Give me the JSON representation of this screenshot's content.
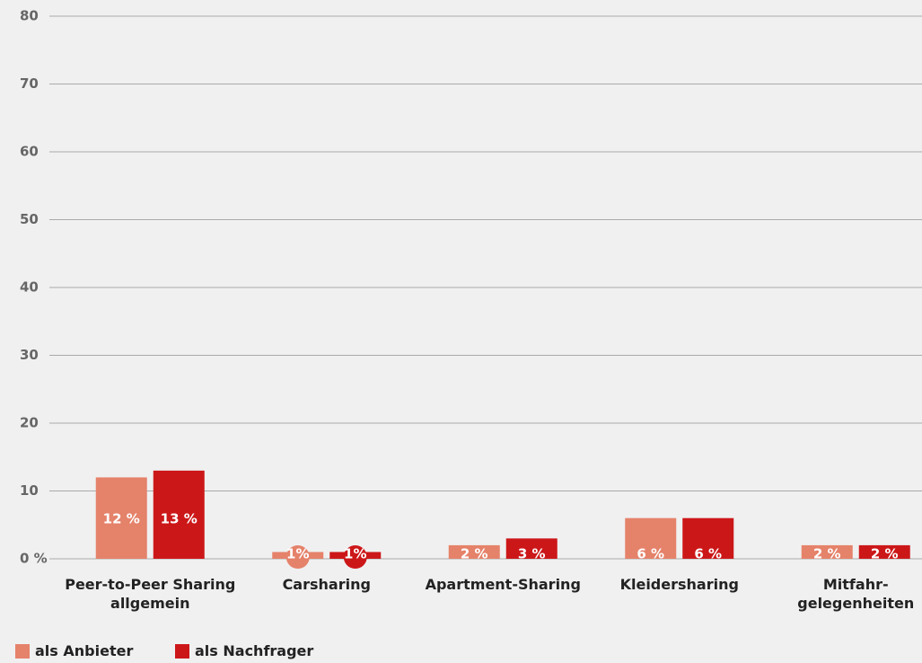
{
  "chart_data": {
    "type": "bar",
    "categories": [
      "Peer-to-Peer Sharing\nallgemein",
      "Carsharing",
      "Apartment-Sharing",
      "Kleidersharing",
      "Mitfahr-\ngelegenheiten"
    ],
    "series": [
      {
        "name": "als Anbieter",
        "color": "#e5826a",
        "values": [
          12,
          1,
          2,
          6,
          2
        ],
        "value_labels": [
          "12 %",
          "1%",
          "2 %",
          "6 %",
          "2 %"
        ]
      },
      {
        "name": "als Nachfrager",
        "color": "#cc1719",
        "values": [
          13,
          1,
          3,
          6,
          2
        ],
        "value_labels": [
          "13 %",
          "1%",
          "3 %",
          "6 %",
          "2 %"
        ]
      }
    ],
    "ylim": [
      0,
      80
    ],
    "yticks": [
      {
        "value": 0,
        "label": "0 %"
      },
      10,
      20,
      30,
      40,
      50,
      60,
      70,
      80
    ],
    "grid": true,
    "legend": "bottom-left"
  }
}
